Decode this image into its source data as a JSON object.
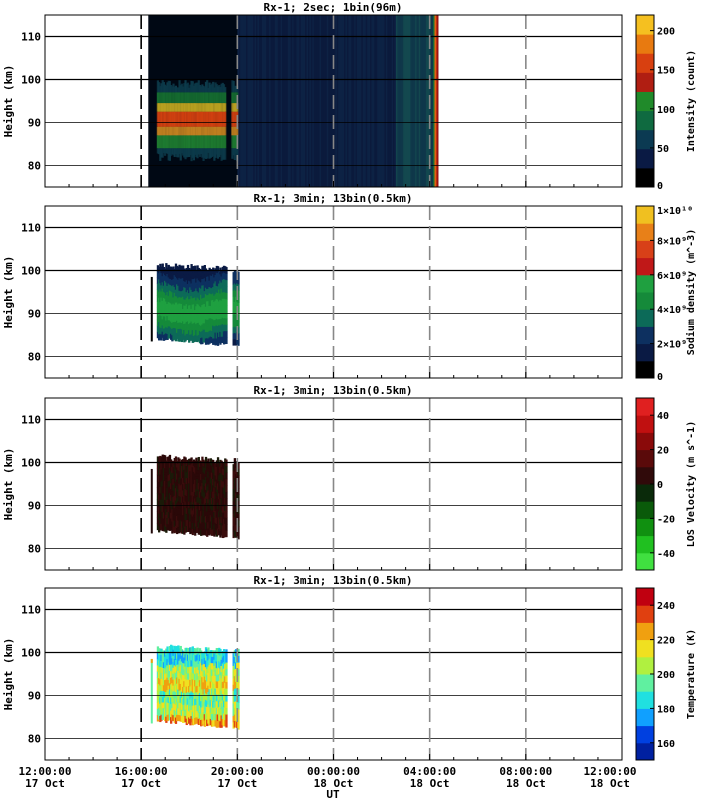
{
  "chart_data": [
    {
      "type": "heatmap",
      "title": "Rx-1;  2sec; 1bin(96m)",
      "ylabel": "Height (km)",
      "ylim": [
        75,
        115
      ],
      "yticks": [
        "80",
        "90",
        "100",
        "110"
      ],
      "colorbar": {
        "label": "Intensity (count)",
        "ticks": [
          "0",
          "50",
          "100",
          "150",
          "200"
        ],
        "range": [
          0,
          220
        ]
      },
      "data": {
        "t_start": "16:20 17 Oct",
        "t_end": "04:20 18 Oct",
        "layer_peak_km": 91,
        "layer_peak_count": 160
      }
    },
    {
      "type": "heatmap",
      "title": "Rx-1; 3min; 13bin(0.5km)",
      "ylabel": "Height (km)",
      "ylim": [
        75,
        115
      ],
      "yticks": [
        "80",
        "90",
        "100",
        "110"
      ],
      "colorbar": {
        "label": "Sodium density (m^-3)",
        "ticks": [
          "0",
          "2×10⁹",
          "4×10⁹",
          "6×10⁹",
          "8×10⁹",
          "1×10¹⁰"
        ],
        "range": [
          0,
          10000000000.0
        ]
      },
      "data": {
        "t_start": "16:20 17 Oct",
        "t_end": "20:00 17 Oct",
        "layer_peak_km": 90,
        "bottom_km": 82,
        "top_km": 101
      }
    },
    {
      "type": "heatmap",
      "title": "Rx-1; 3min; 13bin(0.5km)",
      "ylabel": "Height (km)",
      "ylim": [
        75,
        115
      ],
      "yticks": [
        "80",
        "90",
        "100",
        "110"
      ],
      "colorbar": {
        "label": "LOS Velocity (m s^-1)",
        "ticks": [
          "-40",
          "-20",
          "0",
          "20",
          "40"
        ],
        "range": [
          -50,
          50
        ]
      },
      "data": {
        "t_start": "16:20 17 Oct",
        "t_end": "20:00 17 Oct",
        "bottom_km": 82,
        "top_km": 101
      }
    },
    {
      "type": "heatmap",
      "title": "Rx-1; 3min; 13bin(0.5km)",
      "ylabel": "Height (km)",
      "ylim": [
        75,
        115
      ],
      "yticks": [
        "80",
        "90",
        "100",
        "110"
      ],
      "colorbar": {
        "label": "Temperature (K)",
        "ticks": [
          "160",
          "180",
          "200",
          "220",
          "240"
        ],
        "range": [
          150,
          250
        ]
      },
      "data": {
        "t_start": "16:20 17 Oct",
        "t_end": "20:00 17 Oct",
        "bottom_km": 82,
        "top_km": 101
      }
    }
  ],
  "x_axis": {
    "label": "UT",
    "tick_times": [
      "12:00:00",
      "16:00:00",
      "20:00:00",
      "00:00:00",
      "04:00:00",
      "08:00:00",
      "12:00:00"
    ],
    "tick_dates": [
      "17 Oct",
      "17 Oct",
      "17 Oct",
      "18 Oct",
      "18 Oct",
      "18 Oct",
      "18 Oct"
    ]
  },
  "colors": {
    "intensity": [
      "#000000",
      "#0a1a44",
      "#0b3a52",
      "#0f6a40",
      "#208a2a",
      "#b01e12",
      "#d84010",
      "#e87a10",
      "#f5c020"
    ],
    "density": [
      "#000000",
      "#0a1a44",
      "#0d3060",
      "#0c6a58",
      "#158a3a",
      "#1fa040",
      "#c01818",
      "#d84018",
      "#e88018",
      "#f0c020"
    ],
    "velocity": [
      "#40e040",
      "#20c020",
      "#109010",
      "#0a5a0a",
      "#0a2a0a",
      "#300a0a",
      "#5a0a0a",
      "#8a0a0a",
      "#c01010",
      "#e02020"
    ],
    "temperature": [
      "#0020a0",
      "#0040e0",
      "#10a0ff",
      "#20e0e0",
      "#60f0a0",
      "#b0f040",
      "#f0e020",
      "#f0a010",
      "#e04010",
      "#c00010"
    ]
  }
}
